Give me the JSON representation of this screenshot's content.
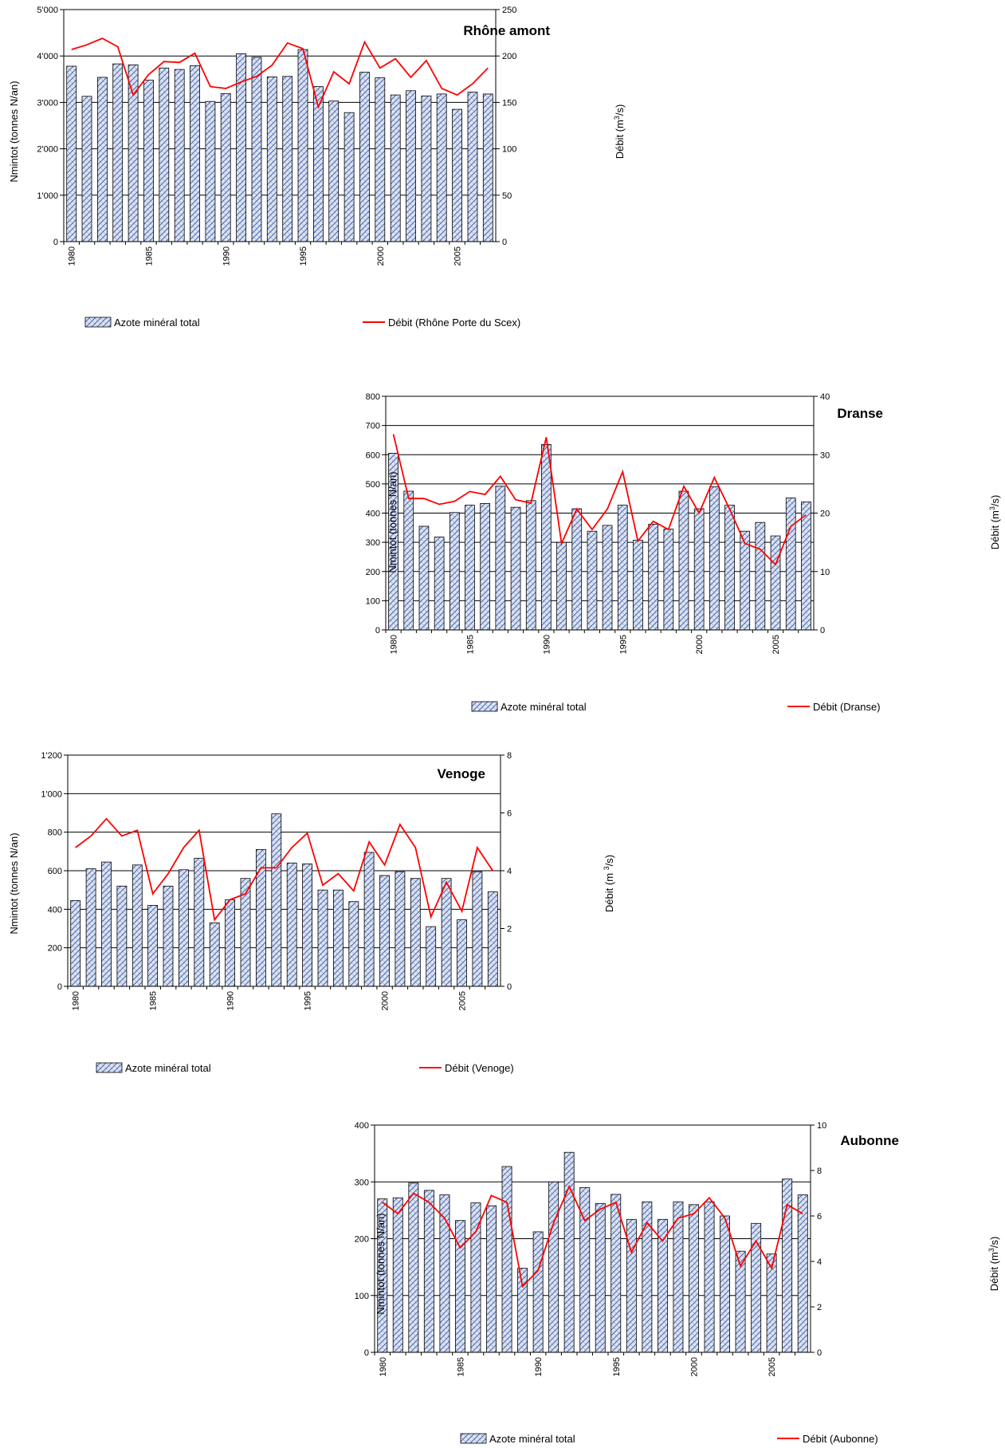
{
  "chart_data": [
    {
      "type": "bar",
      "title": "Rhône amont",
      "ylabel": "Nmintot (tonnes N/an)",
      "y2label_prefix": "Débit (m",
      "y2label_sup": "3",
      "y2label_suffix": "/s)",
      "ylim": [
        0,
        5000
      ],
      "y_ticks": [
        "0",
        "1'000",
        "2'000",
        "3'000",
        "4'000",
        "5'000"
      ],
      "y2lim": [
        0,
        250
      ],
      "y2_ticks": [
        "0",
        "50",
        "100",
        "150",
        "200",
        "250"
      ],
      "x": [
        1980,
        1981,
        1982,
        1983,
        1984,
        1985,
        1986,
        1987,
        1988,
        1989,
        1990,
        1991,
        1992,
        1993,
        1994,
        1995,
        1996,
        1997,
        1998,
        1999,
        2000,
        2001,
        2002,
        2003,
        2004,
        2005,
        2006,
        2007
      ],
      "x_ticks": [
        "1980",
        "1985",
        "1990",
        "1995",
        "2000",
        "2005"
      ],
      "series": [
        {
          "name": "Azote minéral total",
          "kind": "bar",
          "values": [
            3780,
            3130,
            3540,
            3830,
            3810,
            3480,
            3740,
            3710,
            3790,
            3020,
            3190,
            4050,
            3970,
            3550,
            3560,
            4140,
            3340,
            3030,
            2780,
            3650,
            3530,
            3160,
            3250,
            3140,
            3180,
            2850,
            3220,
            3180
          ]
        },
        {
          "name": "Débit (Rhône Porte du Scex)",
          "kind": "line",
          "values": [
            207,
            212,
            219,
            210,
            158,
            180,
            194,
            193,
            203,
            167,
            165,
            172,
            178,
            190,
            214,
            208,
            145,
            183,
            170,
            215,
            187,
            197,
            177,
            195,
            165,
            158,
            170,
            187
          ]
        }
      ],
      "colors": {
        "bar_fill": "#dbe3f1",
        "bar_hatch": "#3a56a6",
        "line": "#ff0000"
      }
    },
    {
      "type": "bar",
      "title": "Dranse",
      "ylabel": "Nmintot (tonnes N/an)",
      "y2label_prefix": "Débit (m",
      "y2label_sup": "3",
      "y2label_suffix": "/s)",
      "ylim": [
        0,
        800
      ],
      "y_ticks": [
        "0",
        "100",
        "200",
        "300",
        "400",
        "500",
        "600",
        "700",
        "800"
      ],
      "y2lim": [
        0,
        40
      ],
      "y2_ticks": [
        "0",
        "10",
        "20",
        "30",
        "40"
      ],
      "x": [
        1980,
        1981,
        1982,
        1983,
        1984,
        1985,
        1986,
        1987,
        1988,
        1989,
        1990,
        1991,
        1992,
        1993,
        1994,
        1995,
        1996,
        1997,
        1998,
        1999,
        2000,
        2001,
        2002,
        2003,
        2004,
        2005,
        2006,
        2007
      ],
      "x_ticks": [
        "1980",
        "1985",
        "1990",
        "1995",
        "2000",
        "2005"
      ],
      "series": [
        {
          "name": "Azote minéral total",
          "kind": "bar",
          "values": [
            605,
            475,
            355,
            318,
            402,
            427,
            433,
            492,
            420,
            443,
            635,
            300,
            415,
            338,
            358,
            427,
            307,
            362,
            345,
            475,
            415,
            490,
            427,
            338,
            368,
            322,
            452,
            438
          ]
        },
        {
          "name": "Débit (Dranse)",
          "kind": "line",
          "values": [
            33.5,
            22.5,
            22.5,
            21.5,
            22,
            23.7,
            23.2,
            26.3,
            22.3,
            21.7,
            33,
            14.8,
            20.7,
            17.2,
            20.7,
            27.1,
            15.2,
            18.6,
            17.2,
            24.6,
            20,
            26.1,
            20.7,
            14.8,
            13.8,
            11.2,
            17.7,
            19.7
          ]
        }
      ],
      "colors": {
        "bar_fill": "#dbe3f1",
        "bar_hatch": "#3a56a6",
        "line": "#ff0000"
      }
    },
    {
      "type": "bar",
      "title": "Venoge",
      "ylabel": "Nmintot (tonnes N/an)",
      "y2label_prefix": "Débit (m ",
      "y2label_sup": "3",
      "y2label_suffix": "/s)",
      "ylim": [
        0,
        1200
      ],
      "y_ticks": [
        "0",
        "200",
        "400",
        "600",
        "800",
        "1'000",
        "1'200"
      ],
      "y2lim": [
        0,
        8
      ],
      "y2_ticks": [
        "0",
        "2",
        "4",
        "6",
        "8"
      ],
      "x": [
        1980,
        1981,
        1982,
        1983,
        1984,
        1985,
        1986,
        1987,
        1988,
        1989,
        1990,
        1991,
        1992,
        1993,
        1994,
        1995,
        1996,
        1997,
        1998,
        1999,
        2000,
        2001,
        2002,
        2003,
        2004,
        2005,
        2006,
        2007
      ],
      "x_ticks": [
        "1980",
        "1985",
        "1990",
        "1995",
        "2000",
        "2005"
      ],
      "series": [
        {
          "name": "Azote minéral total",
          "kind": "bar",
          "values": [
            445,
            610,
            645,
            520,
            630,
            420,
            520,
            605,
            665,
            330,
            450,
            560,
            710,
            895,
            640,
            635,
            500,
            500,
            440,
            695,
            575,
            595,
            560,
            310,
            560,
            345,
            595,
            490
          ]
        },
        {
          "name": "Débit (Venoge)",
          "kind": "line",
          "values": [
            4.8,
            5.2,
            5.8,
            5.2,
            5.4,
            3.2,
            3.9,
            4.8,
            5.4,
            2.3,
            3.0,
            3.2,
            4.1,
            4.1,
            4.8,
            5.3,
            3.5,
            3.9,
            3.3,
            5.0,
            4.2,
            5.6,
            4.8,
            2.4,
            3.6,
            2.6,
            4.8,
            4.0
          ]
        }
      ],
      "colors": {
        "bar_fill": "#dbe3f1",
        "bar_hatch": "#3a56a6",
        "line": "#ff0000"
      }
    },
    {
      "type": "bar",
      "title": "Aubonne",
      "ylabel": "Nmintot (tonnes N/an)",
      "y2label_prefix": "Débit (m",
      "y2label_sup": "3",
      "y2label_suffix": "/s)",
      "ylim": [
        0,
        400
      ],
      "y_ticks": [
        "0",
        "100",
        "200",
        "300",
        "400"
      ],
      "y2lim": [
        0,
        10
      ],
      "y2_ticks": [
        "0",
        "2",
        "4",
        "6",
        "8",
        "10"
      ],
      "x": [
        1980,
        1981,
        1982,
        1983,
        1984,
        1985,
        1986,
        1987,
        1988,
        1989,
        1990,
        1991,
        1992,
        1993,
        1994,
        1995,
        1996,
        1997,
        1998,
        1999,
        2000,
        2001,
        2002,
        2003,
        2004,
        2005,
        2006,
        2007
      ],
      "x_ticks": [
        "1980",
        "1985",
        "1990",
        "1995",
        "2000",
        "2005"
      ],
      "series": [
        {
          "name": "Azote minéral total",
          "kind": "bar",
          "values": [
            270,
            272,
            298,
            285,
            277,
            232,
            263,
            258,
            327,
            148,
            212,
            300,
            352,
            290,
            262,
            278,
            234,
            265,
            234,
            265,
            260,
            265,
            240,
            178,
            227,
            173,
            305,
            277
          ]
        },
        {
          "name": "Débit (Aubonne)",
          "kind": "line",
          "values": [
            6.6,
            6.1,
            7.0,
            6.6,
            5.9,
            4.6,
            5.3,
            6.9,
            6.6,
            2.9,
            3.6,
            5.7,
            7.3,
            5.8,
            6.3,
            6.6,
            4.4,
            5.7,
            4.9,
            5.9,
            6.1,
            6.8,
            5.9,
            3.8,
            4.9,
            3.7,
            6.5,
            6.1
          ]
        }
      ],
      "colors": {
        "bar_fill": "#dbe3f1",
        "bar_hatch": "#3a56a6",
        "line": "#ff0000"
      }
    }
  ]
}
